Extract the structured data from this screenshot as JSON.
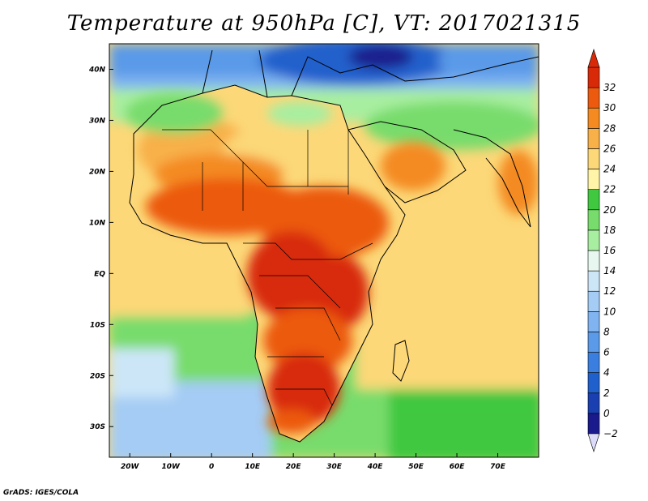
{
  "title": "Temperature at 950hPa [C], VT: 2017021315",
  "credit": "GrADS: IGES/COLA",
  "map": {
    "region": "Africa",
    "variable": "Temperature at 950hPa",
    "units": "C",
    "valid_time": "2017021315",
    "lon_range": [
      -25,
      80
    ],
    "lat_range": [
      -36,
      45
    ],
    "lon_ticks": [
      {
        "value": -20,
        "label": "20W"
      },
      {
        "value": -10,
        "label": "10W"
      },
      {
        "value": 0,
        "label": "0"
      },
      {
        "value": 10,
        "label": "10E"
      },
      {
        "value": 20,
        "label": "20E"
      },
      {
        "value": 30,
        "label": "30E"
      },
      {
        "value": 40,
        "label": "40E"
      },
      {
        "value": 50,
        "label": "50E"
      },
      {
        "value": 60,
        "label": "60E"
      },
      {
        "value": 70,
        "label": "70E"
      }
    ],
    "lat_ticks": [
      {
        "value": 40,
        "label": "40N"
      },
      {
        "value": 30,
        "label": "30N"
      },
      {
        "value": 20,
        "label": "20N"
      },
      {
        "value": 10,
        "label": "10N"
      },
      {
        "value": 0,
        "label": "EQ"
      },
      {
        "value": -10,
        "label": "10S"
      },
      {
        "value": -20,
        "label": "20S"
      },
      {
        "value": -30,
        "label": "30S"
      }
    ]
  },
  "colorbar": {
    "levels": [
      "-2",
      "0",
      "2",
      "4",
      "6",
      "8",
      "10",
      "12",
      "14",
      "16",
      "18",
      "20",
      "22",
      "24",
      "26",
      "28",
      "30",
      "32"
    ],
    "colors": [
      "#1a1a8c",
      "#1a3fb0",
      "#2060cc",
      "#3a7fe0",
      "#5a9ae8",
      "#80b4f0",
      "#a4ccf4",
      "#cce6f8",
      "#e8f8f0",
      "#a8eea0",
      "#78dc6c",
      "#40c840",
      "#fff4a8",
      "#fcd878",
      "#f8b048",
      "#f48a20",
      "#ec5a10",
      "#d82a08"
    ],
    "under_color": "#dcdcfa",
    "over_color": "#d82a08"
  }
}
